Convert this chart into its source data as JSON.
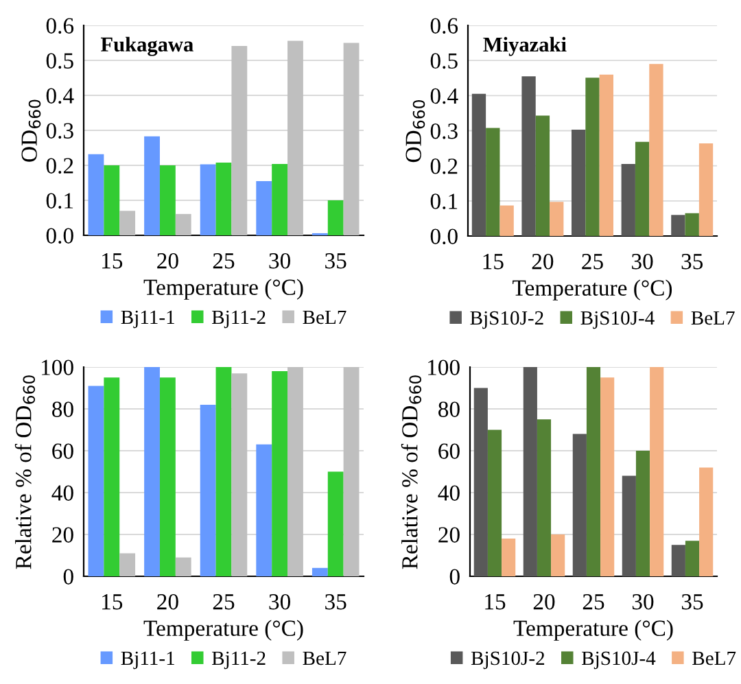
{
  "chart_data": [
    {
      "type": "bar",
      "title": "Fukagawa",
      "xlabel": "Temperature (°C)",
      "ylabel": "OD$_{660}$",
      "categories": [
        "15",
        "20",
        "25",
        "30",
        "35"
      ],
      "series": [
        {
          "name": "Bj11-1",
          "color": "#6699ff",
          "values": [
            0.232,
            0.283,
            0.203,
            0.155,
            0.006
          ]
        },
        {
          "name": "Bj11-2",
          "color": "#33cc33",
          "values": [
            0.2,
            0.2,
            0.208,
            0.204,
            0.1
          ]
        },
        {
          "name": "BeL7",
          "color": "#bfbfbf",
          "values": [
            0.07,
            0.061,
            0.541,
            0.556,
            0.55
          ]
        }
      ],
      "ylim": [
        0,
        0.6
      ],
      "yticks": [
        {
          "value": 0,
          "label": "0.0"
        },
        0.1,
        0.2,
        0.3,
        0.4,
        0.5,
        0.6
      ],
      "grid": "y",
      "legend": "bottom"
    },
    {
      "type": "bar",
      "title": "Miyazaki",
      "xlabel": "Temperature (°C)",
      "ylabel": "OD$_{660}$",
      "categories": [
        "15",
        "20",
        "25",
        "30",
        "35"
      ],
      "series": [
        {
          "name": "BjS10J-2",
          "color": "#595959",
          "values": [
            0.405,
            0.455,
            0.303,
            0.205,
            0.06
          ]
        },
        {
          "name": "BjS10J-4",
          "color": "#548235",
          "values": [
            0.308,
            0.343,
            0.451,
            0.268,
            0.065
          ]
        },
        {
          "name": "BeL7",
          "color": "#f4b183",
          "values": [
            0.087,
            0.097,
            0.46,
            0.49,
            0.264
          ]
        }
      ],
      "ylim": [
        0,
        0.6
      ],
      "yticks": [
        {
          "value": 0,
          "label": "0.0"
        },
        0.1,
        0.2,
        0.3,
        0.4,
        0.5,
        0.6
      ],
      "grid": "y",
      "legend": "bottom"
    },
    {
      "type": "bar",
      "xlabel": "Temperature (°C)",
      "ylabel": "Relative % of OD$_{660}$",
      "categories": [
        "15",
        "20",
        "25",
        "30",
        "35"
      ],
      "series": [
        {
          "name": "Bj11-1",
          "color": "#6699ff",
          "values": [
            91,
            100,
            82,
            63,
            4
          ]
        },
        {
          "name": "Bj11-2",
          "color": "#33cc33",
          "values": [
            95,
            95,
            100,
            98,
            50
          ]
        },
        {
          "name": "BeL7",
          "color": "#bfbfbf",
          "values": [
            11,
            9,
            97,
            100,
            100
          ]
        }
      ],
      "ylim": [
        0,
        100
      ],
      "yticks": [
        0,
        20,
        40,
        60,
        80,
        100
      ],
      "grid": "y",
      "legend": "bottom"
    },
    {
      "type": "bar",
      "xlabel": "Temperature (°C)",
      "ylabel": "Relative % of OD$_{660}$",
      "categories": [
        "15",
        "20",
        "25",
        "30",
        "35"
      ],
      "series": [
        {
          "name": "BjS10J-2",
          "color": "#595959",
          "values": [
            90,
            100,
            68,
            48,
            15
          ]
        },
        {
          "name": "BjS10J-4",
          "color": "#548235",
          "values": [
            70,
            75,
            100,
            60,
            17
          ]
        },
        {
          "name": "BeL7",
          "color": "#f4b183",
          "values": [
            18,
            20,
            95,
            100,
            52
          ]
        }
      ],
      "ylim": [
        0,
        100
      ],
      "yticks": [
        0,
        20,
        40,
        60,
        80,
        100
      ],
      "grid": "y",
      "legend": "bottom"
    }
  ]
}
